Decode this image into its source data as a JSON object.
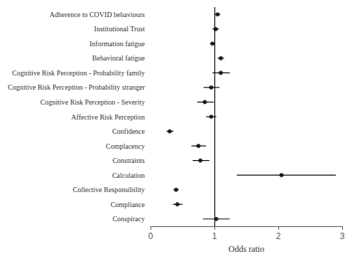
{
  "chart_data": {
    "type": "forest",
    "orientation": "horizontal",
    "categories": [
      "Adherence to COVID behaviours",
      "Institutional Trust",
      "Information fatigue",
      "Behavioral fatigue",
      "Cognitive Risk Perception - Probability family",
      "Cognitive Risk Perception - Probability stranger",
      "Cognitive Risk Perception - Severity",
      "Affective Risk Perception",
      "Confidence",
      "Complacency",
      "Constraints",
      "Calculation",
      "Collective Responsibility",
      "Compliance",
      "Conspiracy"
    ],
    "values": [
      1.05,
      1.02,
      0.97,
      1.1,
      1.1,
      0.95,
      0.85,
      0.95,
      0.3,
      0.75,
      0.78,
      2.05,
      0.4,
      0.42,
      1.03
    ],
    "ci_low": [
      1.01,
      0.97,
      0.93,
      1.05,
      0.97,
      0.83,
      0.73,
      0.87,
      0.25,
      0.64,
      0.66,
      1.35,
      0.36,
      0.35,
      0.82
    ],
    "ci_high": [
      1.09,
      1.07,
      1.01,
      1.15,
      1.24,
      1.08,
      0.99,
      1.03,
      0.36,
      0.87,
      0.92,
      2.9,
      0.44,
      0.5,
      1.24
    ],
    "xlim": [
      0,
      3
    ],
    "xticks": [
      0,
      1,
      2,
      3
    ],
    "xlabel": "Odds ratio",
    "vline": 1.0,
    "color": "black",
    "grid": false
  }
}
